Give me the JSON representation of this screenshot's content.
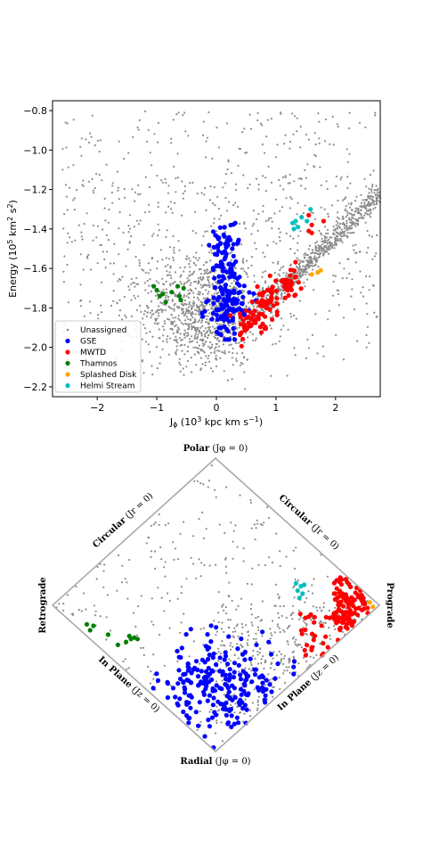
{
  "chart_data": [
    {
      "type": "scatter",
      "title": "",
      "xlabel": "Jφ (10³ kpc km s⁻¹)",
      "ylabel": "Energy (10⁵ km² s²)",
      "xlim": [
        -2.75,
        2.75
      ],
      "ylim": [
        -2.25,
        -0.75
      ],
      "xticks": [
        "−2",
        "−1",
        "0",
        "1",
        "2"
      ],
      "xtick_values": [
        -2,
        -1,
        0,
        1,
        2
      ],
      "yticks": [
        "−0.8",
        "−1.0",
        "−1.2",
        "−1.4",
        "−1.6",
        "−1.8",
        "−2.0",
        "−2.2"
      ],
      "ytick_values": [
        -0.8,
        -1.0,
        -1.2,
        -1.4,
        -1.6,
        -1.8,
        -2.0,
        -2.2
      ],
      "grid": false,
      "legend_position": "lower-left",
      "series": [
        {
          "name": "Unassigned",
          "color": "#8c8c8c",
          "marker": "small-dot",
          "approx_count": 2000,
          "regions": [
            {
              "x": [
                -2.6,
                2.7
              ],
              "y": [
                -2.15,
                -0.8
              ],
              "density": "sparse"
            },
            {
              "x": [
                -1.2,
                0.8
              ],
              "y": [
                -2.05,
                -1.6
              ],
              "density": "dense"
            },
            {
              "x": [
                0.6,
                2.7
              ],
              "y": [
                -1.85,
                -1.25
              ],
              "density": "dense-diagonal"
            }
          ]
        },
        {
          "name": "GSE",
          "color": "#0000ff",
          "marker": "circle",
          "centroid": [
            0.15,
            -1.72
          ],
          "x_range": [
            -0.3,
            0.6
          ],
          "y_range": [
            -1.95,
            -1.25
          ]
        },
        {
          "name": "MWTD",
          "color": "#ff0000",
          "marker": "circle",
          "centroid": [
            0.95,
            -1.72
          ],
          "x_range": [
            0.3,
            1.85
          ],
          "y_range": [
            -1.97,
            -1.33
          ]
        },
        {
          "name": "Thamnos",
          "color": "#008000",
          "marker": "circle",
          "x": [
            -1.05,
            -1.0,
            -0.95,
            -0.9,
            -0.85,
            -0.75,
            -0.65,
            -0.62,
            -0.55,
            -0.6
          ],
          "y": [
            -1.69,
            -1.71,
            -1.74,
            -1.73,
            -1.77,
            -1.72,
            -1.69,
            -1.74,
            -1.7,
            -1.76
          ]
        },
        {
          "name": "Splashed Disk",
          "color": "#ffa500",
          "marker": "circle",
          "x": [
            1.6,
            1.7,
            1.75
          ],
          "y": [
            -1.63,
            -1.62,
            -1.61
          ]
        },
        {
          "name": "Helmi Stream",
          "color": "#00bfbf",
          "marker": "circle",
          "x": [
            1.28,
            1.33,
            1.3,
            1.43,
            1.37,
            1.58,
            1.52
          ],
          "y": [
            -1.37,
            -1.36,
            -1.4,
            -1.34,
            -1.39,
            -1.3,
            -1.36
          ]
        }
      ]
    },
    {
      "type": "scatter",
      "description_type": "action-diamond",
      "labels": {
        "top": "Polar",
        "top_math": "(Jφ = 0)",
        "bottom": "Radial",
        "bottom_math": "(Jφ = 0)",
        "left": "Retrograde",
        "right": "Prograde",
        "upper_left": "Circular",
        "upper_left_math": "(Jr = 0)",
        "upper_right": "Circular",
        "upper_right_math": "(Jr = 0)",
        "lower_left": "In Plane",
        "lower_left_math": "(Jz = 0)",
        "lower_right": "In Plane",
        "lower_right_math": "(Jz = 0)"
      },
      "series": [
        {
          "name": "Unassigned",
          "color": "#8c8c8c",
          "marker": "small-dot",
          "approx_count": 1500,
          "region": "entire diamond, denser toward right and lower regions"
        },
        {
          "name": "GSE",
          "color": "#0000ff",
          "marker": "circle",
          "region": "lower half near Radial vertex"
        },
        {
          "name": "MWTD",
          "color": "#ff0000",
          "marker": "circle",
          "region": "right side near Prograde vertex"
        },
        {
          "name": "Thamnos",
          "color": "#008000",
          "marker": "circle",
          "region": "left near Retrograde vertex, slightly below center line"
        },
        {
          "name": "Splashed Disk",
          "color": "#ffa500",
          "marker": "circle",
          "region": "at Prograde vertex"
        },
        {
          "name": "Helmi Stream",
          "color": "#00bfbf",
          "marker": "circle",
          "region": "upper right near center line"
        }
      ]
    }
  ]
}
